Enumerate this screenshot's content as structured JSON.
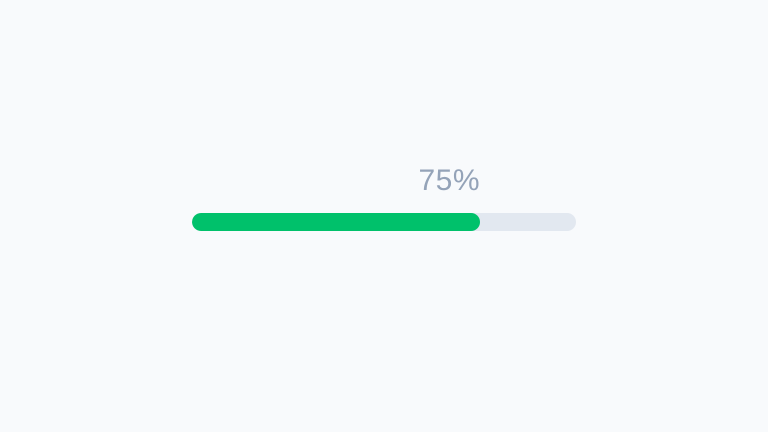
{
  "progress": {
    "label": "75%",
    "percent": 75
  },
  "colors": {
    "page_bg": "#f8fafc",
    "track": "#e2e8f0",
    "fill": "#00c16b",
    "label_text": "#94a3b8"
  }
}
